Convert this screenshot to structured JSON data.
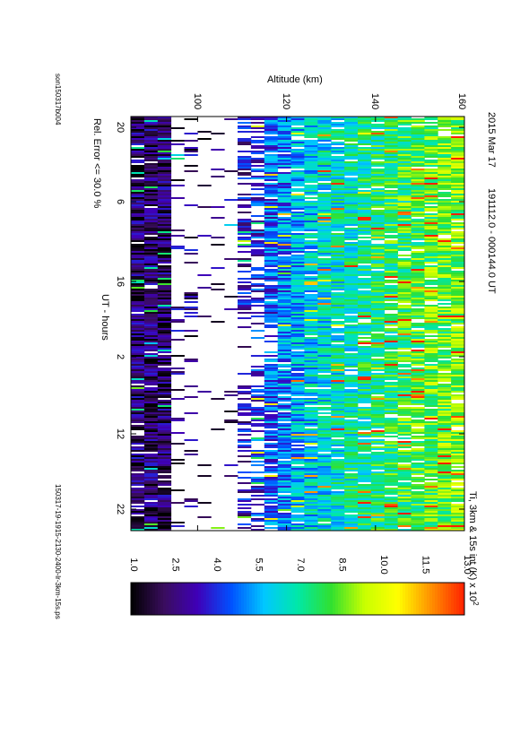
{
  "header": {
    "date": "2015 Mar 17",
    "time_range": "191112.0 - 000144.0 UT"
  },
  "chart_data": {
    "type": "heatmap",
    "orientation": "rotated 90 degrees clockwise (portrait page)",
    "xlabel": "UT - hours",
    "ylabel": "Altitude (km)",
    "x_ticks": [
      "20",
      "6",
      "16",
      "2",
      "12",
      "22"
    ],
    "y_ticks": [
      "100",
      "120",
      "140",
      "160"
    ],
    "y_range": [
      85,
      160
    ],
    "color_quantity": "Ti, 3km & 15s int (K) x 10",
    "color_exponent": "2",
    "colorbar_ticks": [
      "1.0",
      "2.5",
      "4.0",
      "5.5",
      "7.0",
      "8.5",
      "10.0",
      "11.5",
      "13.0"
    ],
    "colorbar_range": [
      1.0,
      13.0
    ],
    "colormap": [
      "#000000",
      "#3a0d5e",
      "#3f00b8",
      "#0050ff",
      "#00c8ff",
      "#00e8a8",
      "#30e030",
      "#c8ff00",
      "#ffff00",
      "#ff9000",
      "#ff2000"
    ],
    "altitude_profile_1e2K": [
      {
        "alt": 85,
        "ti": 2.4
      },
      {
        "alt": 95,
        "ti": 2.2
      },
      {
        "alt": 100,
        "ti": null
      },
      {
        "alt": 108,
        "ti": 3.0
      },
      {
        "alt": 118,
        "ti": 4.8
      },
      {
        "alt": 124,
        "ti": 6.0
      },
      {
        "alt": 135,
        "ti": 7.0
      },
      {
        "alt": 145,
        "ti": 7.8
      },
      {
        "alt": 155,
        "ti": 8.5
      },
      {
        "alt": 160,
        "ti": 8.8
      }
    ],
    "footer_left": "Rel. Error <= 30.0 %",
    "footer_right": "150317-19-1915-2130-2400-lr-3km-15s.ps",
    "file_code": "son150317b004"
  }
}
